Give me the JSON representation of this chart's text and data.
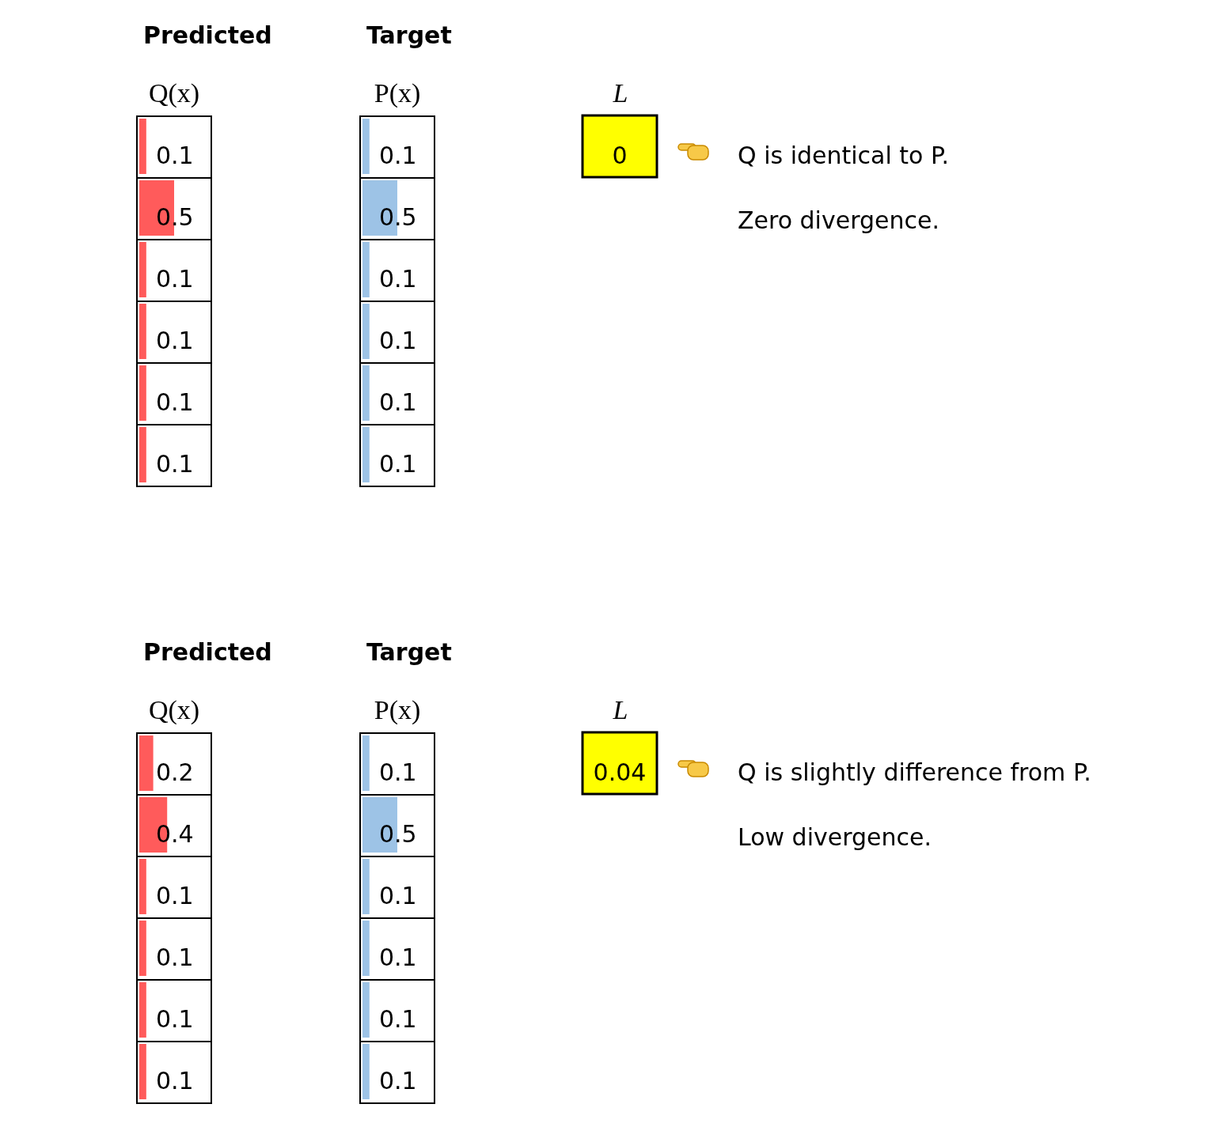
{
  "chart_data": [
    {
      "type": "bar",
      "orientation": "horizontal",
      "title": "Predicted",
      "subtitle": "Q(x)",
      "categories": [
        null,
        null,
        null,
        null,
        null,
        null
      ],
      "values": [
        0.1,
        0.5,
        0.1,
        0.1,
        0.1,
        0.1
      ],
      "color": "#ff5b5b",
      "xlim": [
        0,
        1
      ],
      "data_labels": true
    },
    {
      "type": "bar",
      "orientation": "horizontal",
      "title": "Target",
      "subtitle": "P(x)",
      "categories": [
        null,
        null,
        null,
        null,
        null,
        null
      ],
      "values": [
        0.1,
        0.5,
        0.1,
        0.1,
        0.1,
        0.1
      ],
      "color": "#9dc3e6",
      "xlim": [
        0,
        1
      ],
      "data_labels": true
    },
    {
      "type": "other",
      "title": "L",
      "annotations": [
        "0",
        "Q is identical to P.",
        "Zero divergence."
      ]
    },
    {
      "type": "bar",
      "orientation": "horizontal",
      "title": "Predicted",
      "subtitle": "Q(x)",
      "categories": [
        null,
        null,
        null,
        null,
        null,
        null
      ],
      "values": [
        0.2,
        0.4,
        0.1,
        0.1,
        0.1,
        0.1
      ],
      "color": "#ff5b5b",
      "xlim": [
        0,
        1
      ],
      "data_labels": true
    },
    {
      "type": "bar",
      "orientation": "horizontal",
      "title": "Target",
      "subtitle": "P(x)",
      "categories": [
        null,
        null,
        null,
        null,
        null,
        null
      ],
      "values": [
        0.1,
        0.5,
        0.1,
        0.1,
        0.1,
        0.1
      ],
      "color": "#9dc3e6",
      "xlim": [
        0,
        1
      ],
      "data_labels": true
    },
    {
      "type": "other",
      "title": "L",
      "annotations": [
        "0.04",
        "Q is slightly difference from P.",
        "Low divergence."
      ]
    }
  ]
}
